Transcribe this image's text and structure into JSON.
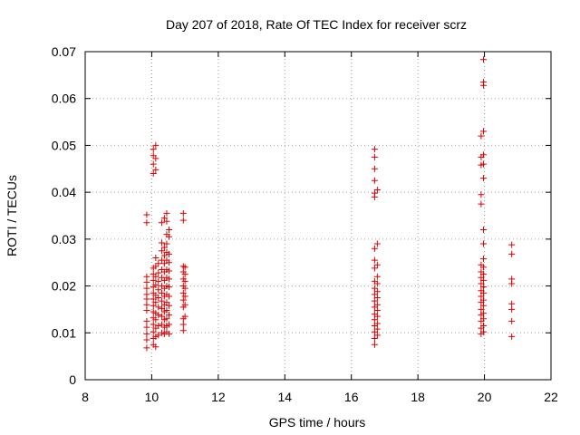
{
  "chart_data": {
    "type": "scatter",
    "title": "Day 207 of 2018, Rate Of TEC Index for receiver scrz",
    "xlabel": "GPS time / hours",
    "ylabel": "ROTI / TECUs",
    "xlim": [
      8,
      22
    ],
    "ylim": [
      0,
      0.07
    ],
    "xticks": [
      "8",
      "10",
      "12",
      "14",
      "16",
      "18",
      "20",
      "22"
    ],
    "yticks": [
      "0",
      "0.01",
      "0.02",
      "0.03",
      "0.04",
      "0.05",
      "0.06",
      "0.07"
    ],
    "grid": true,
    "marker": "plus",
    "color": "#e00000",
    "series": [
      {
        "name": "scrz",
        "points": [
          [
            9.85,
            0.0068
          ],
          [
            9.85,
            0.0085
          ],
          [
            9.85,
            0.0098
          ],
          [
            9.85,
            0.0112
          ],
          [
            9.85,
            0.0125
          ],
          [
            9.85,
            0.0148
          ],
          [
            9.85,
            0.016
          ],
          [
            9.85,
            0.0172
          ],
          [
            9.85,
            0.0182
          ],
          [
            9.85,
            0.0195
          ],
          [
            9.85,
            0.0208
          ],
          [
            9.85,
            0.022
          ],
          [
            9.85,
            0.0335
          ],
          [
            9.85,
            0.0352
          ],
          [
            10.05,
            0.0075
          ],
          [
            10.05,
            0.0088
          ],
          [
            10.05,
            0.0102
          ],
          [
            10.05,
            0.0118
          ],
          [
            10.05,
            0.0132
          ],
          [
            10.05,
            0.0145
          ],
          [
            10.05,
            0.0158
          ],
          [
            10.05,
            0.0172
          ],
          [
            10.05,
            0.0185
          ],
          [
            10.05,
            0.0198
          ],
          [
            10.05,
            0.0212
          ],
          [
            10.05,
            0.0225
          ],
          [
            10.05,
            0.0238
          ],
          [
            10.05,
            0.044
          ],
          [
            10.05,
            0.046
          ],
          [
            10.05,
            0.0478
          ],
          [
            10.05,
            0.0492
          ],
          [
            10.12,
            0.007
          ],
          [
            10.12,
            0.0092
          ],
          [
            10.12,
            0.011
          ],
          [
            10.12,
            0.0128
          ],
          [
            10.12,
            0.0142
          ],
          [
            10.12,
            0.0165
          ],
          [
            10.12,
            0.018
          ],
          [
            10.12,
            0.0202
          ],
          [
            10.12,
            0.022
          ],
          [
            10.12,
            0.0242
          ],
          [
            10.12,
            0.026
          ],
          [
            10.12,
            0.0448
          ],
          [
            10.12,
            0.0472
          ],
          [
            10.12,
            0.05
          ],
          [
            10.2,
            0.0095
          ],
          [
            10.2,
            0.0115
          ],
          [
            10.2,
            0.0138
          ],
          [
            10.2,
            0.0155
          ],
          [
            10.2,
            0.0175
          ],
          [
            10.2,
            0.0192
          ],
          [
            10.2,
            0.021
          ],
          [
            10.2,
            0.0228
          ],
          [
            10.2,
            0.0248
          ],
          [
            10.3,
            0.01
          ],
          [
            10.3,
            0.0118
          ],
          [
            10.3,
            0.0135
          ],
          [
            10.3,
            0.0152
          ],
          [
            10.3,
            0.0168
          ],
          [
            10.3,
            0.0185
          ],
          [
            10.3,
            0.02
          ],
          [
            10.3,
            0.0218
          ],
          [
            10.3,
            0.0235
          ],
          [
            10.3,
            0.0255
          ],
          [
            10.3,
            0.0275
          ],
          [
            10.3,
            0.0292
          ],
          [
            10.3,
            0.0335
          ],
          [
            10.38,
            0.0098
          ],
          [
            10.38,
            0.0112
          ],
          [
            10.38,
            0.0128
          ],
          [
            10.38,
            0.0145
          ],
          [
            10.38,
            0.016
          ],
          [
            10.38,
            0.0178
          ],
          [
            10.38,
            0.0195
          ],
          [
            10.38,
            0.0212
          ],
          [
            10.38,
            0.023
          ],
          [
            10.38,
            0.0248
          ],
          [
            10.38,
            0.0265
          ],
          [
            10.38,
            0.0282
          ],
          [
            10.38,
            0.0345
          ],
          [
            10.45,
            0.0102
          ],
          [
            10.45,
            0.0115
          ],
          [
            10.45,
            0.013
          ],
          [
            10.45,
            0.0148
          ],
          [
            10.45,
            0.0165
          ],
          [
            10.45,
            0.0182
          ],
          [
            10.45,
            0.02
          ],
          [
            10.45,
            0.0218
          ],
          [
            10.45,
            0.0235
          ],
          [
            10.45,
            0.0255
          ],
          [
            10.45,
            0.0272
          ],
          [
            10.45,
            0.029
          ],
          [
            10.45,
            0.031
          ],
          [
            10.45,
            0.0338
          ],
          [
            10.45,
            0.0355
          ],
          [
            10.52,
            0.0098
          ],
          [
            10.52,
            0.0118
          ],
          [
            10.52,
            0.0138
          ],
          [
            10.52,
            0.0158
          ],
          [
            10.52,
            0.0178
          ],
          [
            10.52,
            0.0198
          ],
          [
            10.52,
            0.0215
          ],
          [
            10.52,
            0.0232
          ],
          [
            10.52,
            0.025
          ],
          [
            10.52,
            0.0268
          ],
          [
            10.52,
            0.0305
          ],
          [
            10.52,
            0.032
          ],
          [
            10.95,
            0.0105
          ],
          [
            10.95,
            0.0118
          ],
          [
            10.95,
            0.013
          ],
          [
            10.95,
            0.0155
          ],
          [
            10.95,
            0.017
          ],
          [
            10.95,
            0.0185
          ],
          [
            10.95,
            0.02
          ],
          [
            10.95,
            0.0215
          ],
          [
            10.95,
            0.023
          ],
          [
            10.95,
            0.0242
          ],
          [
            10.95,
            0.034
          ],
          [
            10.95,
            0.0355
          ],
          [
            11.0,
            0.0135
          ],
          [
            11.0,
            0.016
          ],
          [
            11.0,
            0.0178
          ],
          [
            11.0,
            0.0195
          ],
          [
            11.0,
            0.021
          ],
          [
            11.0,
            0.0225
          ],
          [
            11.0,
            0.024
          ],
          [
            16.7,
            0.0075
          ],
          [
            16.7,
            0.0088
          ],
          [
            16.7,
            0.0102
          ],
          [
            16.7,
            0.0115
          ],
          [
            16.7,
            0.0128
          ],
          [
            16.7,
            0.014
          ],
          [
            16.7,
            0.0155
          ],
          [
            16.7,
            0.0168
          ],
          [
            16.7,
            0.0182
          ],
          [
            16.7,
            0.0195
          ],
          [
            16.7,
            0.021
          ],
          [
            16.7,
            0.0238
          ],
          [
            16.7,
            0.0255
          ],
          [
            16.7,
            0.028
          ],
          [
            16.7,
            0.039
          ],
          [
            16.7,
            0.0398
          ],
          [
            16.7,
            0.0425
          ],
          [
            16.7,
            0.045
          ],
          [
            16.7,
            0.0475
          ],
          [
            16.7,
            0.0492
          ],
          [
            16.78,
            0.0095
          ],
          [
            16.78,
            0.0108
          ],
          [
            16.78,
            0.012
          ],
          [
            16.78,
            0.0135
          ],
          [
            16.78,
            0.0148
          ],
          [
            16.78,
            0.016
          ],
          [
            16.78,
            0.0175
          ],
          [
            16.78,
            0.0188
          ],
          [
            16.78,
            0.0205
          ],
          [
            16.78,
            0.022
          ],
          [
            16.78,
            0.0245
          ],
          [
            16.78,
            0.029
          ],
          [
            16.78,
            0.0405
          ],
          [
            19.9,
            0.0098
          ],
          [
            19.9,
            0.011
          ],
          [
            19.9,
            0.0125
          ],
          [
            19.9,
            0.0138
          ],
          [
            19.9,
            0.015
          ],
          [
            19.9,
            0.0165
          ],
          [
            19.9,
            0.0178
          ],
          [
            19.9,
            0.019
          ],
          [
            19.9,
            0.0205
          ],
          [
            19.9,
            0.0218
          ],
          [
            19.9,
            0.023
          ],
          [
            19.9,
            0.0245
          ],
          [
            19.9,
            0.0375
          ],
          [
            19.9,
            0.0395
          ],
          [
            19.9,
            0.0458
          ],
          [
            19.9,
            0.0475
          ],
          [
            19.9,
            0.052
          ],
          [
            19.97,
            0.0102
          ],
          [
            19.97,
            0.0115
          ],
          [
            19.97,
            0.013
          ],
          [
            19.97,
            0.0142
          ],
          [
            19.97,
            0.0158
          ],
          [
            19.97,
            0.017
          ],
          [
            19.97,
            0.0185
          ],
          [
            19.97,
            0.0198
          ],
          [
            19.97,
            0.0212
          ],
          [
            19.97,
            0.0225
          ],
          [
            19.97,
            0.024
          ],
          [
            19.97,
            0.0258
          ],
          [
            19.97,
            0.029
          ],
          [
            19.97,
            0.032
          ],
          [
            19.97,
            0.043
          ],
          [
            19.97,
            0.046
          ],
          [
            19.97,
            0.048
          ],
          [
            19.97,
            0.053
          ],
          [
            19.97,
            0.0628
          ],
          [
            19.97,
            0.0635
          ],
          [
            19.97,
            0.0683
          ],
          [
            20.82,
            0.0092
          ],
          [
            20.82,
            0.0125
          ],
          [
            20.82,
            0.015
          ],
          [
            20.82,
            0.0162
          ],
          [
            20.82,
            0.0205
          ],
          [
            20.82,
            0.0215
          ],
          [
            20.82,
            0.0268
          ],
          [
            20.82,
            0.0288
          ]
        ]
      }
    ]
  }
}
